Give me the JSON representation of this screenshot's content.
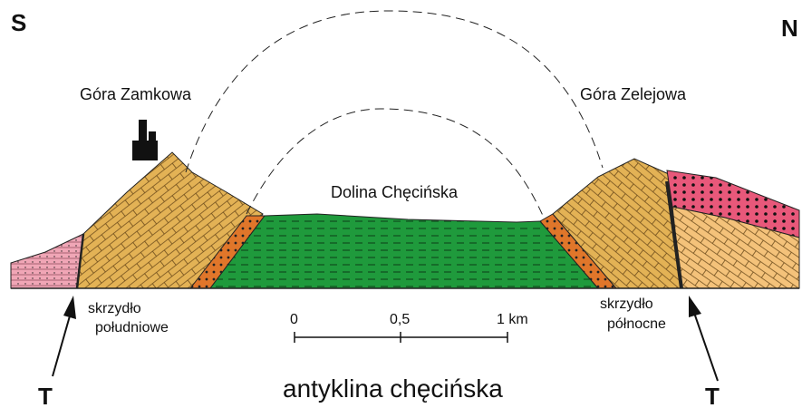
{
  "labels": {
    "south": "S",
    "north": "N",
    "hill_left": "Góra Zamkowa",
    "hill_right": "Góra Zelejowa",
    "valley": "Dolina Chęcińska",
    "wing_left": [
      "skrzydło",
      "południowe"
    ],
    "wing_right": [
      "skrzydło",
      "północne"
    ],
    "title": "antyklina chęcińska",
    "fault_left": "T",
    "fault_right": "T"
  },
  "scale": {
    "labels": [
      "0",
      "0,5",
      "1 km"
    ]
  }
}
